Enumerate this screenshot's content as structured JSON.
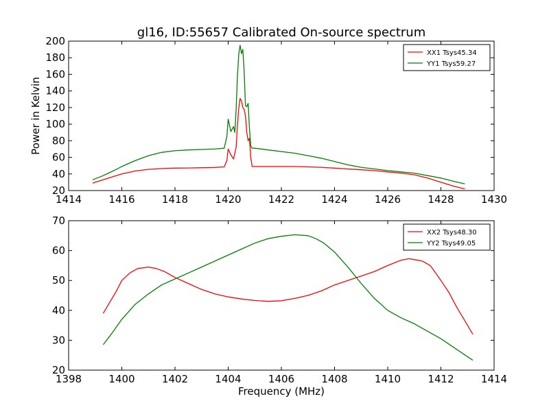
{
  "title": "gl16, ID:55657 Calibrated On-source spectrum",
  "chart_data": [
    {
      "type": "line",
      "title": "gl16, ID:55657 Calibrated On-source spectrum",
      "xlabel": "",
      "ylabel": "Power in Kelvin",
      "xlim": [
        1414,
        1430
      ],
      "ylim": [
        20,
        200
      ],
      "xticks": [
        1414,
        1416,
        1418,
        1420,
        1422,
        1424,
        1426,
        1428,
        1430
      ],
      "yticks": [
        20,
        40,
        60,
        80,
        100,
        120,
        140,
        160,
        180,
        200
      ],
      "grid": false,
      "legend_position": "top-right",
      "series": [
        {
          "name": "XX1 Tsys45.34",
          "color": "#ff0000",
          "x": [
            1414.9,
            1415.3,
            1415.7,
            1416.0,
            1416.5,
            1417.0,
            1417.5,
            1418.0,
            1418.5,
            1419.0,
            1419.5,
            1419.85,
            1419.95,
            1420.0,
            1420.1,
            1420.2,
            1420.3,
            1420.35,
            1420.4,
            1420.45,
            1420.5,
            1420.55,
            1420.6,
            1420.65,
            1420.7,
            1420.75,
            1420.8,
            1420.85,
            1420.9,
            1421.0,
            1421.5,
            1422.0,
            1422.5,
            1423.0,
            1423.5,
            1424.0,
            1424.5,
            1425.0,
            1425.5,
            1426.0,
            1426.5,
            1427.0,
            1427.5,
            1428.0,
            1428.5,
            1428.9
          ],
          "y": [
            29,
            33,
            37,
            40,
            43.5,
            45.5,
            46.5,
            47,
            47.2,
            47.5,
            47.8,
            48.5,
            56,
            70,
            63,
            58,
            72,
            100,
            120,
            131,
            128,
            120,
            118,
            110,
            90,
            80,
            83,
            60,
            49,
            49,
            49,
            49,
            49,
            48.5,
            48,
            47,
            46,
            45,
            44,
            42.5,
            41,
            39,
            35,
            30,
            25,
            22
          ]
        },
        {
          "name": "YY1 Tsys59.27",
          "color": "#008000",
          "x": [
            1414.9,
            1415.3,
            1415.7,
            1416.0,
            1416.5,
            1417.0,
            1417.5,
            1418.0,
            1418.5,
            1419.0,
            1419.5,
            1419.85,
            1419.95,
            1420.0,
            1420.1,
            1420.2,
            1420.25,
            1420.3,
            1420.35,
            1420.4,
            1420.45,
            1420.5,
            1420.55,
            1420.6,
            1420.65,
            1420.7,
            1420.75,
            1420.8,
            1420.85,
            1420.9,
            1421.0,
            1421.5,
            1422.0,
            1422.5,
            1423.0,
            1423.5,
            1424.0,
            1424.5,
            1425.0,
            1425.5,
            1426.0,
            1426.5,
            1427.0,
            1427.5,
            1428.0,
            1428.5,
            1428.9
          ],
          "y": [
            33,
            38,
            44,
            49,
            56,
            62,
            66,
            68,
            69,
            69.5,
            70,
            71,
            85,
            106,
            91,
            97,
            90,
            118,
            160,
            185,
            195,
            185,
            190,
            165,
            122,
            121,
            125,
            95,
            74,
            71,
            71,
            69,
            67,
            65,
            62,
            59,
            55,
            51,
            48,
            46,
            44,
            42.5,
            41,
            38,
            35,
            31,
            28
          ]
        }
      ]
    },
    {
      "type": "line",
      "title": "",
      "xlabel": "Frequency (MHz)",
      "ylabel": "",
      "xlim": [
        1398,
        1414
      ],
      "ylim": [
        20,
        70
      ],
      "xticks": [
        1398,
        1400,
        1402,
        1404,
        1406,
        1408,
        1410,
        1412,
        1414
      ],
      "yticks": [
        20,
        30,
        40,
        50,
        60,
        70
      ],
      "grid": false,
      "legend_position": "top-right",
      "series": [
        {
          "name": "XX2 Tsys48.30",
          "color": "#ff0000",
          "x": [
            1399.3,
            1399.5,
            1399.8,
            1400.0,
            1400.3,
            1400.6,
            1401.0,
            1401.3,
            1401.6,
            1402.0,
            1402.5,
            1403.0,
            1403.5,
            1404.0,
            1404.5,
            1405.0,
            1405.5,
            1406.0,
            1406.5,
            1407.0,
            1407.5,
            1408.0,
            1408.5,
            1409.0,
            1409.5,
            1410.0,
            1410.5,
            1410.8,
            1411.0,
            1411.3,
            1411.6,
            1412.0,
            1412.3,
            1412.6,
            1413.0,
            1413.2
          ],
          "y": [
            39,
            42,
            46.5,
            50,
            52.5,
            54,
            54.5,
            54,
            53,
            51,
            49,
            47,
            45.5,
            44.5,
            43.8,
            43.3,
            43,
            43.2,
            44,
            45,
            46.5,
            48.5,
            50,
            51.5,
            53,
            55,
            56.8,
            57.3,
            57,
            56.5,
            55,
            50,
            46,
            41,
            35,
            32
          ]
        },
        {
          "name": "YY2 Tsys49.05",
          "color": "#008000",
          "x": [
            1399.3,
            1399.6,
            1400.0,
            1400.5,
            1401.0,
            1401.5,
            1402.0,
            1402.5,
            1403.0,
            1403.5,
            1404.0,
            1404.5,
            1405.0,
            1405.5,
            1406.0,
            1406.5,
            1407.0,
            1407.3,
            1407.6,
            1408.0,
            1408.5,
            1409.0,
            1409.5,
            1410.0,
            1410.5,
            1411.0,
            1411.5,
            1412.0,
            1412.5,
            1413.0,
            1413.2
          ],
          "y": [
            28.5,
            32,
            37,
            42,
            45.5,
            48.5,
            50.5,
            52.5,
            54.5,
            56.5,
            58.5,
            60.5,
            62.5,
            64,
            64.8,
            65.3,
            65,
            64,
            62.5,
            59.5,
            54.5,
            49,
            44,
            40,
            37.5,
            35.5,
            33,
            30.5,
            27.5,
            24.5,
            23.3
          ]
        }
      ]
    }
  ]
}
